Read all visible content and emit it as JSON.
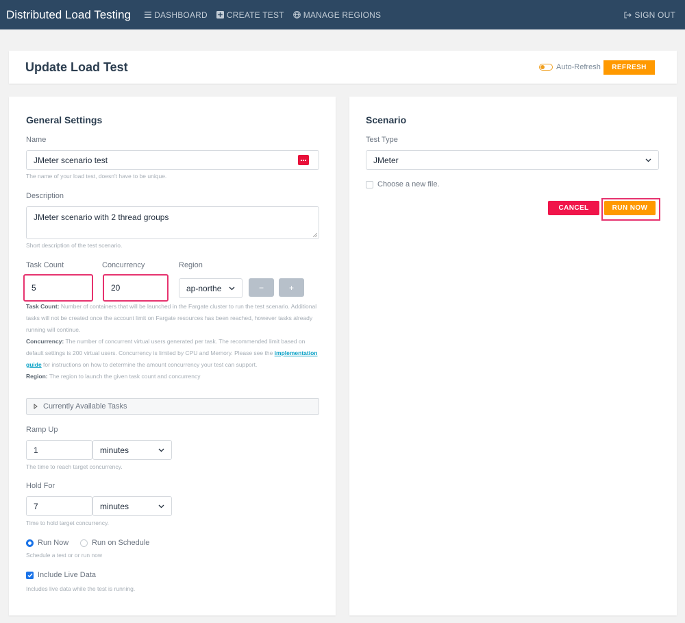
{
  "nav": {
    "brand": "Distributed Load Testing",
    "dashboard": "DASHBOARD",
    "create_test": "CREATE TEST",
    "manage_regions": "MANAGE REGIONS",
    "sign_out": "SIGN OUT"
  },
  "header": {
    "title": "Update Load Test",
    "auto_refresh_label": "Auto-Refresh",
    "refresh_button": "REFRESH"
  },
  "general": {
    "title": "General Settings",
    "name_label": "Name",
    "name_value": "JMeter scenario test",
    "name_help": "The name of your load test, doesn't have to be unique.",
    "description_label": "Description",
    "description_value": "JMeter scenario with 2 thread groups",
    "description_help": "Short description of the test scenario.",
    "task_count_label": "Task Count",
    "task_count_value": "5",
    "concurrency_label": "Concurrency",
    "concurrency_value": "20",
    "region_label": "Region",
    "region_value": "ap-northe",
    "minus": "−",
    "plus": "+",
    "task_desc_bold": "Task Count:",
    "task_desc": " Number of containers that will be launched in the Fargate cluster to run the test scenario. Additional tasks will not be created once the account limit on Fargate resources has been reached, however tasks already running will continue.",
    "conc_desc_bold": "Concurrency:",
    "conc_desc_1": " The number of concurrent virtual users generated per task. The recommended limit based on default settings is 200 virtual users. Concurrency is limited by CPU and Memory. Please see the ",
    "conc_desc_link": "implementation guide",
    "conc_desc_2": " for instructions on how to determine the amount concurrency your test can support.",
    "region_desc_bold": "Region:",
    "region_desc": " The region to launch the given task count and concurrency",
    "available_tasks": "Currently Available Tasks",
    "ramp_up_label": "Ramp Up",
    "ramp_up_value": "1",
    "ramp_up_unit": "minutes",
    "ramp_up_help": "The time to reach target concurrency.",
    "hold_for_label": "Hold For",
    "hold_for_value": "7",
    "hold_for_unit": "minutes",
    "hold_for_help": "Time to hold target concurrency.",
    "run_now_option": "Run Now",
    "run_schedule_option": "Run on Schedule",
    "schedule_help": "Schedule a test or or run now",
    "live_data_label": "Include Live Data",
    "live_data_help": "Includes live data while the test is running."
  },
  "scenario": {
    "title": "Scenario",
    "test_type_label": "Test Type",
    "test_type_value": "JMeter",
    "choose_file_label": "Choose a new file.",
    "cancel_button": "CANCEL",
    "run_now_button": "RUN NOW"
  },
  "colors": {
    "navbar": "#2d4863",
    "accent_orange": "#ff9900",
    "cancel_red": "#f0154a",
    "highlight_pink": "#e6326e",
    "link": "#0aa1c6"
  }
}
